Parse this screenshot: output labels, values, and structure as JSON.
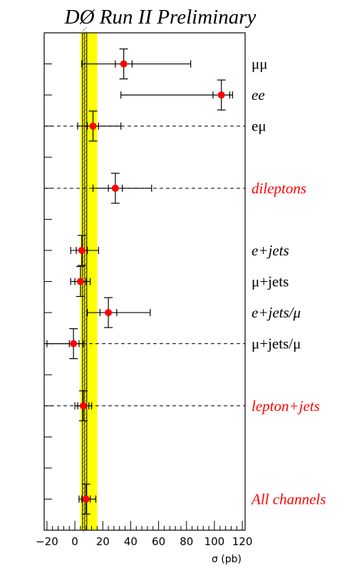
{
  "chart_data": {
    "type": "scatter",
    "title": "DØ Run II Preliminary",
    "xlabel": "σ (pb)",
    "xlim": [
      -22,
      122
    ],
    "xticks": [
      "−20",
      "0",
      "20",
      "40",
      "60",
      "80",
      "100",
      "120"
    ],
    "xtick_values": [
      -20,
      0,
      20,
      40,
      60,
      80,
      100,
      120
    ],
    "band": {
      "center": 7.0,
      "low": 4.0,
      "high": 16.0,
      "color": "#ffff00"
    },
    "point_color": "#ff0000",
    "separators": [
      3,
      5,
      10,
      12
    ],
    "rows": 15,
    "measurements": [
      {
        "label": "μμ",
        "italic": false,
        "color": "#000000",
        "row": 1,
        "value": 35,
        "stat": [
          29,
          41
        ],
        "syst": [
          5,
          83
        ]
      },
      {
        "label": "ee",
        "italic": true,
        "color": "#000000",
        "row": 2,
        "value": 105,
        "stat": [
          99,
          111
        ],
        "syst": [
          33,
          113
        ]
      },
      {
        "label": "eμ",
        "italic": false,
        "color": "#000000",
        "row": 3,
        "value": 13,
        "stat": [
          9,
          17
        ],
        "syst": [
          2,
          33
        ]
      },
      {
        "label": "dileptons",
        "italic": true,
        "color": "#ff0000",
        "row": 5,
        "value": 29,
        "stat": [
          24,
          34
        ],
        "syst": [
          13,
          55
        ]
      },
      {
        "label": "e+jets",
        "italic": true,
        "color": "#000000",
        "row": 7,
        "value": 5,
        "stat": [
          1,
          9
        ],
        "syst": [
          -3,
          17
        ]
      },
      {
        "label": "μ+jets",
        "italic": false,
        "color": "#000000",
        "row": 8,
        "value": 4,
        "stat": [
          0,
          8
        ],
        "syst": [
          -3,
          11
        ]
      },
      {
        "label": "e+jets/μ",
        "italic": true,
        "color": "#000000",
        "row": 9,
        "value": 24,
        "stat": [
          18,
          30
        ],
        "syst": [
          9,
          54
        ]
      },
      {
        "label": "μ+jets/μ",
        "italic": false,
        "color": "#000000",
        "row": 10,
        "value": -1,
        "stat": [
          -4,
          3
        ],
        "syst": [
          -20,
          6
        ]
      },
      {
        "label": "lepton+jets",
        "italic": true,
        "color": "#ff0000",
        "row": 12,
        "value": 6,
        "stat": [
          2,
          10
        ],
        "syst": [
          0,
          12
        ]
      },
      {
        "label": "All channels",
        "italic": true,
        "color": "#ff0000",
        "row": 15,
        "value": 8,
        "stat": [
          5,
          11
        ],
        "syst": [
          3,
          15
        ]
      }
    ]
  }
}
